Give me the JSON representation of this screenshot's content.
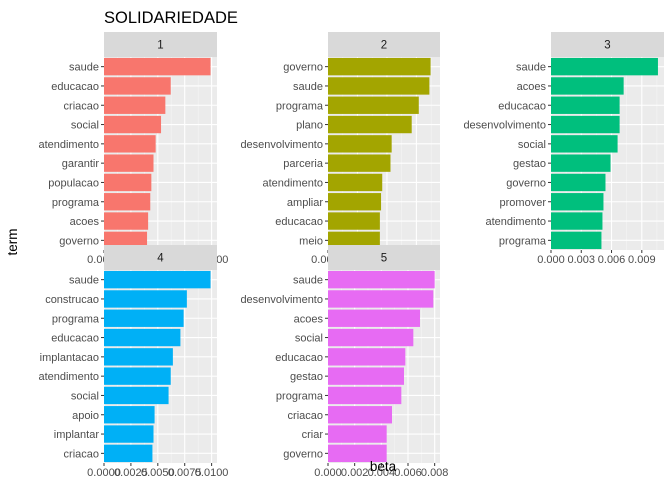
{
  "chart_data": {
    "type": "bar",
    "orientation": "horizontal",
    "title": "SOLIDARIEDADE",
    "xlabel": "beta",
    "ylabel": "term",
    "grid": true,
    "facet_layout": "3 columns x 2 rows",
    "panels": [
      {
        "strip": "1",
        "color": "#F8766D",
        "xlim": [
          0,
          0.0105
        ],
        "xticks": [
          "0.0000",
          "0.0025",
          "0.0050",
          "0.0075",
          "0.0100"
        ],
        "xtick_values": [
          0,
          0.0025,
          0.005,
          0.0075,
          0.01
        ],
        "categories": [
          "saude",
          "educacao",
          "criacao",
          "social",
          "atendimento",
          "garantir",
          "populacao",
          "programa",
          "acoes",
          "governo"
        ],
        "values": [
          0.0099,
          0.0062,
          0.0057,
          0.0053,
          0.0048,
          0.0046,
          0.0044,
          0.0043,
          0.0041,
          0.004
        ]
      },
      {
        "strip": "2",
        "color": "#A3A500",
        "xlim": [
          0,
          0.0095
        ],
        "xticks": [
          "0.0000",
          "0.0025",
          "0.0050",
          "0.0075"
        ],
        "xtick_values": [
          0,
          0.0025,
          0.005,
          0.0075
        ],
        "categories": [
          "governo",
          "saude",
          "programa",
          "plano",
          "desenvolvimento",
          "parceria",
          "atendimento",
          "ampliar",
          "educacao",
          "meio"
        ],
        "values": [
          0.0087,
          0.0086,
          0.0077,
          0.0071,
          0.0054,
          0.0053,
          0.0046,
          0.0045,
          0.0044,
          0.0044
        ]
      },
      {
        "strip": "3",
        "color": "#00BF7D",
        "xlim": [
          0,
          0.0112
        ],
        "xticks": [
          "0.000",
          "0.003",
          "0.006",
          "0.009"
        ],
        "xtick_values": [
          0,
          0.003,
          0.006,
          0.009
        ],
        "categories": [
          "saude",
          "acoes",
          "educacao",
          "desenvolvimento",
          "social",
          "gestao",
          "governo",
          "promover",
          "atendimento",
          "programa"
        ],
        "values": [
          0.0106,
          0.0072,
          0.0068,
          0.0068,
          0.0066,
          0.0059,
          0.0054,
          0.0052,
          0.0051,
          0.005
        ]
      },
      {
        "strip": "4",
        "color": "#00B0F6",
        "xlim": [
          0,
          0.0105
        ],
        "xticks": [
          "0.0000",
          "0.0025",
          "0.0050",
          "0.0075",
          "0.0100"
        ],
        "xtick_values": [
          0,
          0.0025,
          0.005,
          0.0075,
          0.01
        ],
        "categories": [
          "saude",
          "construcao",
          "programa",
          "educacao",
          "implantacao",
          "atendimento",
          "social",
          "apoio",
          "implantar",
          "criacao"
        ],
        "values": [
          0.0099,
          0.0077,
          0.0074,
          0.0071,
          0.0064,
          0.0062,
          0.006,
          0.0047,
          0.0046,
          0.0045
        ]
      },
      {
        "strip": "5",
        "color": "#E76BF3",
        "xlim": [
          0,
          0.0084
        ],
        "xticks": [
          "0.000",
          "0.002",
          "0.004",
          "0.006",
          "0.008"
        ],
        "xtick_values": [
          0,
          0.002,
          0.004,
          0.006,
          0.008
        ],
        "categories": [
          "saude",
          "desenvolvimento",
          "acoes",
          "social",
          "educacao",
          "gestao",
          "programa",
          "criacao",
          "criar",
          "governo"
        ],
        "values": [
          0.008,
          0.0079,
          0.0069,
          0.0064,
          0.0058,
          0.0057,
          0.0055,
          0.0048,
          0.0044,
          0.0044
        ]
      }
    ]
  }
}
